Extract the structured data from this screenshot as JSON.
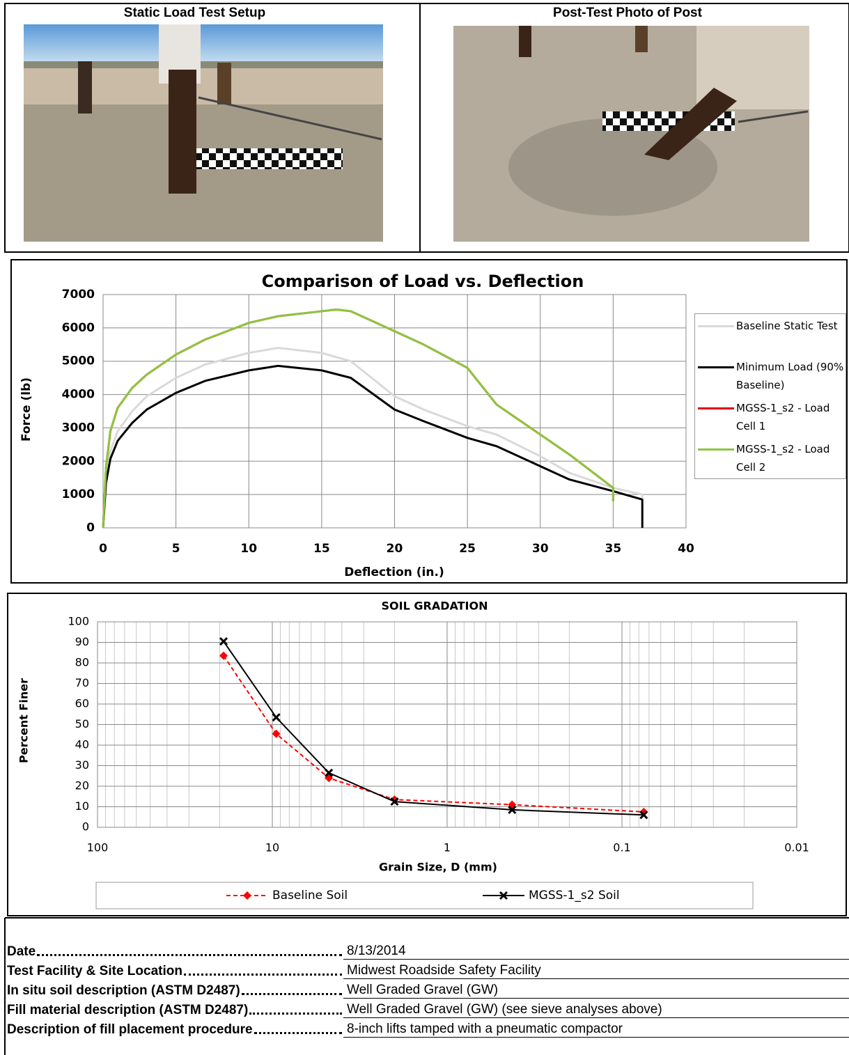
{
  "photos": [
    {
      "title": "Static Load Test Setup"
    },
    {
      "title": "Post-Test Photo of Post"
    }
  ],
  "chart_data": [
    {
      "type": "line",
      "title": "Comparison of Load vs. Deflection",
      "x_label": "Deflection (in.)",
      "y_label": "Force (lb)",
      "xlim": [
        0,
        40
      ],
      "xticks": [
        0,
        5,
        10,
        15,
        20,
        25,
        30,
        35,
        40
      ],
      "ylim": [
        0,
        7000
      ],
      "yticks": [
        0,
        1000,
        2000,
        3000,
        4000,
        5000,
        6000,
        7000
      ],
      "grid": true,
      "legend": "right",
      "series": [
        {
          "name": "Baseline Static Test",
          "color": "#d9d9d9",
          "x": [
            0,
            0.2,
            0.5,
            1,
            2,
            3,
            5,
            7,
            10,
            12,
            15,
            17,
            20,
            22,
            25,
            27,
            30,
            32,
            35,
            37,
            37
          ],
          "values": [
            0,
            1500,
            2300,
            2900,
            3500,
            3950,
            4500,
            4900,
            5250,
            5400,
            5250,
            5000,
            3950,
            3550,
            3050,
            2800,
            2150,
            1650,
            1200,
            1000,
            900
          ]
        },
        {
          "name": "Minimum Load (90% Baseline)",
          "color": "#000000",
          "x": [
            0,
            0.2,
            0.5,
            1,
            2,
            3,
            5,
            7,
            10,
            12,
            15,
            17,
            20,
            22,
            25,
            27,
            30,
            32,
            35,
            37,
            37
          ],
          "values": [
            0,
            1350,
            2070,
            2610,
            3150,
            3550,
            4050,
            4410,
            4725,
            4860,
            4725,
            4500,
            3550,
            3200,
            2700,
            2450,
            1850,
            1450,
            1100,
            850,
            0
          ]
        },
        {
          "name": "MGSS-1_s2 - Load Cell 1",
          "color": "#e00000",
          "x": [
            0,
            0.2,
            0.5,
            1,
            2,
            3,
            5,
            7,
            10,
            12,
            15,
            16,
            17,
            20,
            22,
            25,
            27,
            30,
            32,
            35,
            35
          ],
          "values": [
            0,
            1800,
            2900,
            3600,
            4200,
            4600,
            5200,
            5650,
            6150,
            6350,
            6500,
            6550,
            6500,
            5900,
            5500,
            4800,
            3700,
            2800,
            2200,
            1200,
            800
          ]
        },
        {
          "name": "MGSS-1_s2 - Load Cell 2",
          "color": "#8cc63f",
          "x": [
            0,
            0.2,
            0.5,
            1,
            2,
            3,
            5,
            7,
            10,
            12,
            15,
            16,
            17,
            20,
            22,
            25,
            27,
            30,
            32,
            35,
            35
          ],
          "values": [
            0,
            1800,
            2900,
            3600,
            4200,
            4600,
            5200,
            5650,
            6150,
            6350,
            6500,
            6550,
            6500,
            5900,
            5500,
            4800,
            3700,
            2800,
            2200,
            1200,
            800
          ]
        }
      ]
    },
    {
      "type": "line",
      "title": "SOIL GRADATION",
      "x_label": "Grain Size, D (mm)",
      "y_label": "Percent Finer",
      "xscale": "log",
      "xlim": [
        100,
        0.01
      ],
      "xticks": [
        100,
        10,
        1,
        0.1,
        0.01
      ],
      "ylim": [
        0,
        100
      ],
      "yticks": [
        0,
        10,
        20,
        30,
        40,
        50,
        60,
        70,
        80,
        90,
        100
      ],
      "grid": true,
      "minor_grid": true,
      "legend": "bottom",
      "series": [
        {
          "name": "Baseline Soil",
          "color": "#ff0000",
          "dash": true,
          "marker": "diamond",
          "x": [
            19,
            9.5,
            4.75,
            2,
            0.425,
            0.075
          ],
          "values": [
            83.5,
            45.5,
            24,
            13.5,
            11,
            7.5
          ]
        },
        {
          "name": "MGSS-1_s2 Soil",
          "color": "#000000",
          "dash": false,
          "marker": "x",
          "x": [
            19,
            9.5,
            4.75,
            2,
            0.425,
            0.075
          ],
          "values": [
            90.5,
            53.5,
            26.5,
            12.5,
            8.5,
            6
          ]
        }
      ]
    }
  ],
  "details": {
    "rows": [
      {
        "label": "Date",
        "value": "8/13/2014"
      },
      {
        "label": "Test Facility & Site Location",
        "value": "Midwest Roadside Safety Facility"
      },
      {
        "label": "In situ soil description (ASTM D2487)",
        "value": "Well Graded Gravel (GW)"
      },
      {
        "label": "Fill material description (ASTM D2487)",
        "value": "Well Graded Gravel (GW) (see sieve analyses above)"
      },
      {
        "label": "Description of fill placement procedure",
        "value": "8-inch lifts tamped with a pneumatic compactor"
      }
    ]
  }
}
